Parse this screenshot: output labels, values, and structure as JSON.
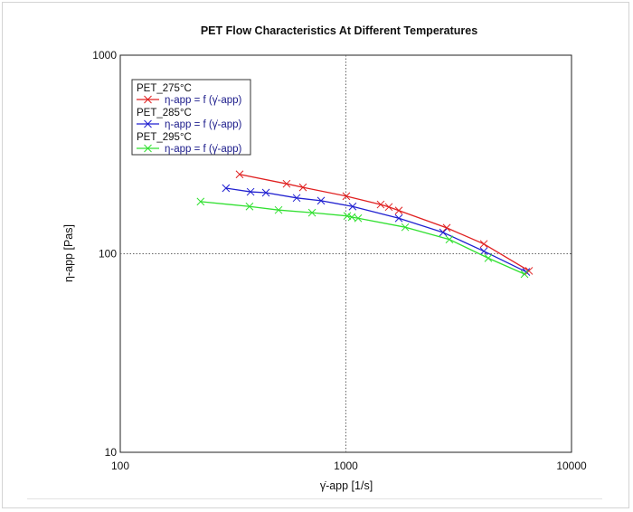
{
  "chart_data": {
    "type": "line",
    "title": "PET Flow Characteristics At Different Temperatures",
    "xlabel": "γ̇-app  [1/s]",
    "ylabel": "η-app  [Pas]",
    "xscale": "log",
    "yscale": "log",
    "xlim": [
      100,
      10000
    ],
    "ylim": [
      10,
      1000
    ],
    "xticks": [
      "100",
      "1000",
      "10000"
    ],
    "yticks": [
      "10",
      "100",
      "1000"
    ],
    "grid": "dotted at 1000 (x) and 100 (y)",
    "legend_position": "top-left",
    "legend": [
      {
        "group": "PET_275°C",
        "entry": "η-app = f (γ̇-app)"
      },
      {
        "group": "PET_285°C",
        "entry": "η-app = f (γ̇-app)"
      },
      {
        "group": "PET_295°C",
        "entry": "η-app = f (γ̇-app)"
      }
    ],
    "series": [
      {
        "name": "PET_275°C",
        "color": "#e02020",
        "x": [
          338,
          546,
          645,
          1004,
          1426,
          1550,
          1716,
          2798,
          4087,
          6480
        ],
        "y": [
          251,
          225,
          216,
          195,
          177,
          172,
          165,
          135,
          112,
          82
        ]
      },
      {
        "name": "PET_285°C",
        "color": "#2020d0",
        "x": [
          294,
          378,
          442,
          605,
          776,
          1071,
          1716,
          2697,
          4087,
          6300
        ],
        "y": [
          214,
          205,
          203,
          191,
          185,
          173,
          151,
          128,
          103,
          81
        ]
      },
      {
        "name": "PET_295°C",
        "color": "#30e030",
        "x": [
          227,
          374,
          503,
          708,
          1014,
          1062,
          1133,
          1832,
          2876,
          4277,
          6190
        ],
        "y": [
          183,
          173,
          166,
          161,
          155,
          153,
          151,
          136,
          118,
          95,
          79
        ]
      }
    ]
  }
}
